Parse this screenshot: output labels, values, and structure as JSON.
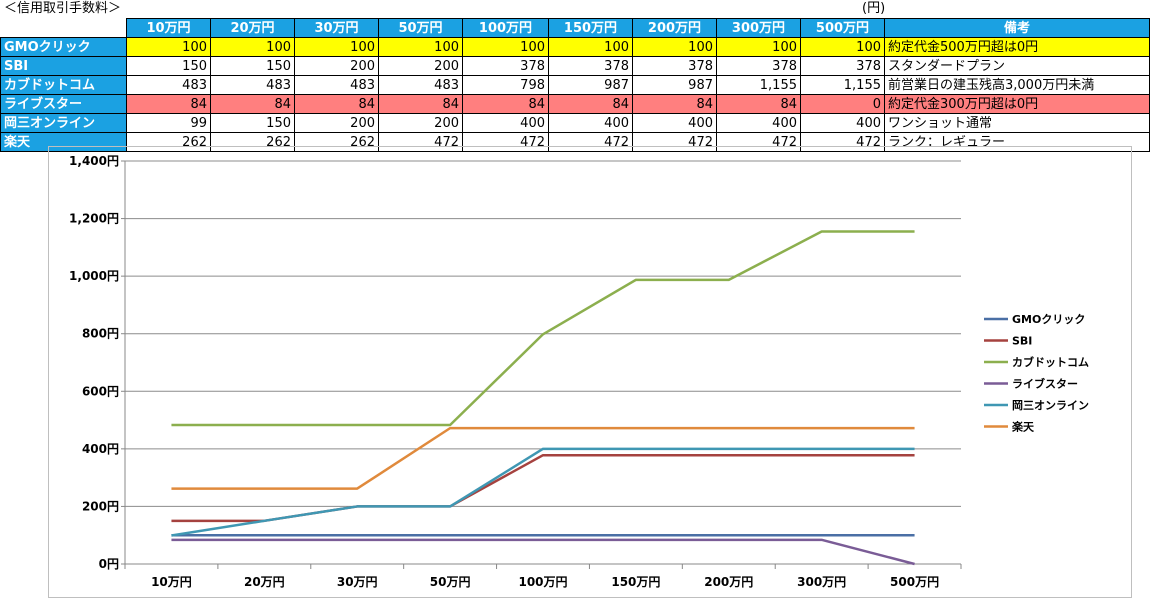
{
  "table": {
    "title": "＜信用取引手数料＞",
    "unit": "(円)",
    "headers": [
      "10万円",
      "20万円",
      "30万円",
      "50万円",
      "100万円",
      "150万円",
      "200万円",
      "300万円",
      "500万円"
    ],
    "note_header": "備考",
    "rows": [
      {
        "name": "GMOクリック",
        "values": [
          "100",
          "100",
          "100",
          "100",
          "100",
          "100",
          "100",
          "100",
          "100"
        ],
        "note": "約定代金500万円超は0円",
        "highlight": "yellow"
      },
      {
        "name": "SBI",
        "values": [
          "150",
          "150",
          "200",
          "200",
          "378",
          "378",
          "378",
          "378",
          "378"
        ],
        "note": "スタンダードプラン",
        "highlight": "none"
      },
      {
        "name": "カブドットコム",
        "values": [
          "483",
          "483",
          "483",
          "483",
          "798",
          "987",
          "987",
          "1,155",
          "1,155"
        ],
        "note": "前営業日の建玉残高3,000万円未満",
        "highlight": "none"
      },
      {
        "name": "ライブスター",
        "values": [
          "84",
          "84",
          "84",
          "84",
          "84",
          "84",
          "84",
          "84",
          "0"
        ],
        "note": "約定代金300万円超は0円",
        "highlight": "pink"
      },
      {
        "name": "岡三オンライン",
        "values": [
          "99",
          "150",
          "200",
          "200",
          "400",
          "400",
          "400",
          "400",
          "400"
        ],
        "note": "ワンショット通常",
        "highlight": "none"
      },
      {
        "name": "楽天",
        "values": [
          "262",
          "262",
          "262",
          "472",
          "472",
          "472",
          "472",
          "472",
          "472"
        ],
        "note": "ランク：レギュラー",
        "highlight": "none"
      }
    ]
  },
  "chart_data": {
    "type": "line",
    "categories": [
      "10万円",
      "20万円",
      "30万円",
      "50万円",
      "100万円",
      "150万円",
      "200万円",
      "300万円",
      "500万円"
    ],
    "ylim": [
      0,
      1400
    ],
    "yticks": [
      0,
      200,
      400,
      600,
      800,
      1000,
      1200,
      1400
    ],
    "ytick_labels": [
      "0円",
      "200円",
      "400円",
      "600円",
      "800円",
      "1,000円",
      "1,200円",
      "1,400円"
    ],
    "grid": true,
    "legend_position": "right",
    "series": [
      {
        "name": "GMOクリック",
        "color": "#4a6fa5",
        "values": [
          100,
          100,
          100,
          100,
          100,
          100,
          100,
          100,
          100
        ]
      },
      {
        "name": "SBI",
        "color": "#a5423f",
        "values": [
          150,
          150,
          200,
          200,
          378,
          378,
          378,
          378,
          378
        ]
      },
      {
        "name": "カブドットコム",
        "color": "#8caf4e",
        "values": [
          483,
          483,
          483,
          483,
          798,
          987,
          987,
          1155,
          1155
        ]
      },
      {
        "name": "ライブスター",
        "color": "#7a5c96",
        "values": [
          84,
          84,
          84,
          84,
          84,
          84,
          84,
          84,
          0
        ]
      },
      {
        "name": "岡三オンライン",
        "color": "#3f97b3",
        "values": [
          99,
          150,
          200,
          200,
          400,
          400,
          400,
          400,
          400
        ]
      },
      {
        "name": "楽天",
        "color": "#e08a3c",
        "values": [
          262,
          262,
          262,
          472,
          472,
          472,
          472,
          472,
          472
        ]
      }
    ]
  }
}
